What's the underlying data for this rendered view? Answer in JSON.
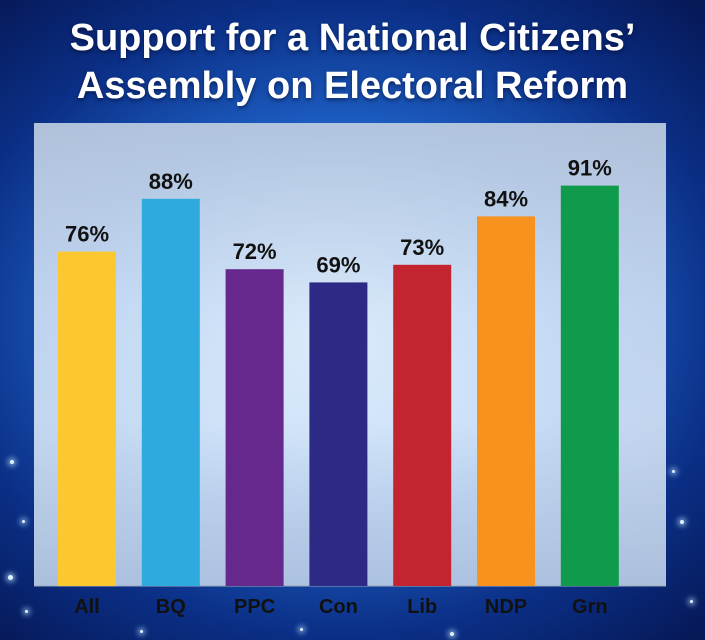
{
  "title_lines": [
    "Support for a National Citizens’",
    "Assembly on Electoral Reform"
  ],
  "chart_data": {
    "type": "bar",
    "title": "Support for a National Citizens’ Assembly on Electoral Reform",
    "categories": [
      "All",
      "BQ",
      "PPC",
      "Con",
      "Lib",
      "NDP",
      "Grn"
    ],
    "values": [
      76,
      88,
      72,
      69,
      73,
      84,
      91
    ],
    "value_labels": [
      "76%",
      "88%",
      "72%",
      "69%",
      "73%",
      "84%",
      "91%"
    ],
    "colors": [
      "#fbc830",
      "#2eaadf",
      "#66288c",
      "#2d2a86",
      "#c42430",
      "#f7921e",
      "#109a4c"
    ],
    "ylim": [
      0,
      100
    ],
    "grid": false,
    "xlabel": "",
    "ylabel": ""
  }
}
